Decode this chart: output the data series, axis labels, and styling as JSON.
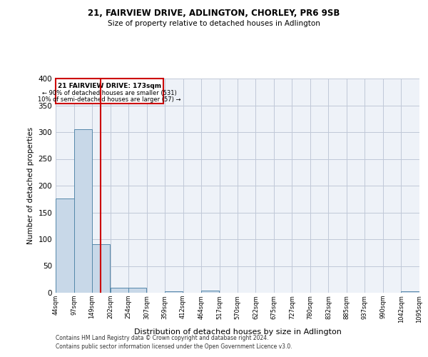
{
  "title": "21, FAIRVIEW DRIVE, ADLINGTON, CHORLEY, PR6 9SB",
  "subtitle": "Size of property relative to detached houses in Adlington",
  "xlabel": "Distribution of detached houses by size in Adlington",
  "ylabel": "Number of detached properties",
  "footnote1": "Contains HM Land Registry data © Crown copyright and database right 2024.",
  "footnote2": "Contains public sector information licensed under the Open Government Licence v3.0.",
  "property_label": "21 FAIRVIEW DRIVE: 173sqm",
  "annotation_line1": "← 90% of detached houses are smaller (531)",
  "annotation_line2": "10% of semi-detached houses are larger (57) →",
  "bar_edges": [
    44,
    97,
    149,
    202,
    254,
    307,
    359,
    412,
    464,
    517,
    570,
    622,
    675,
    727,
    780,
    832,
    885,
    937,
    990,
    1042,
    1095
  ],
  "bar_heights": [
    176,
    305,
    91,
    10,
    10,
    0,
    3,
    0,
    4,
    0,
    0,
    0,
    0,
    0,
    0,
    0,
    0,
    0,
    0,
    3
  ],
  "bar_color": "#c8d8e8",
  "bar_edgecolor": "#5588aa",
  "red_line_x": 173,
  "red_color": "#cc0000",
  "ylim": [
    0,
    400
  ],
  "yticks": [
    0,
    50,
    100,
    150,
    200,
    250,
    300,
    350,
    400
  ],
  "grid_color": "#c0c8d8",
  "background_color": "#eef2f8"
}
